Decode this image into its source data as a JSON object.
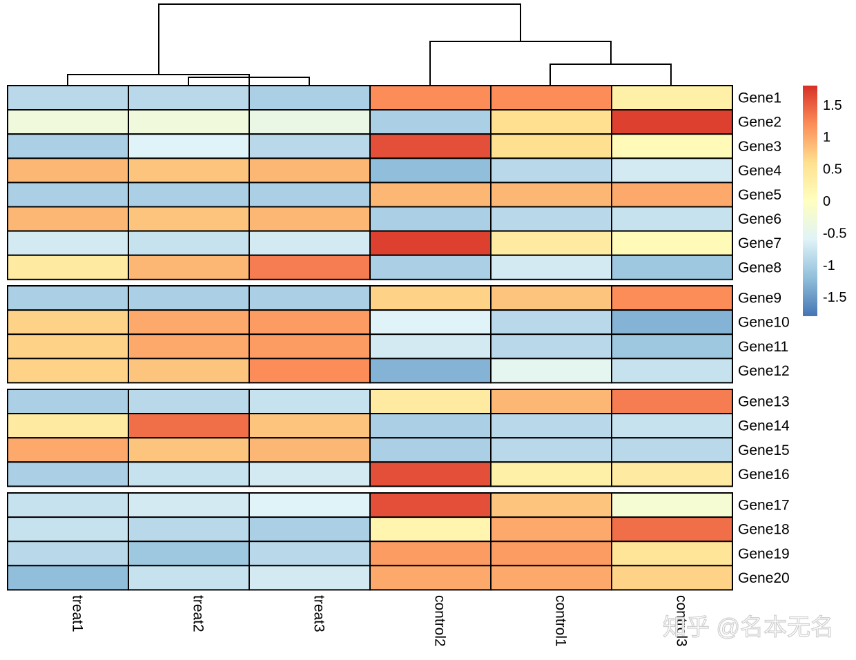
{
  "chart_data": {
    "type": "heatmap",
    "title": "",
    "columns": [
      "treat1",
      "treat2",
      "treat3",
      "control2",
      "control1",
      "control3"
    ],
    "rows": [
      "Gene1",
      "Gene2",
      "Gene3",
      "Gene4",
      "Gene5",
      "Gene6",
      "Gene7",
      "Gene8",
      "Gene9",
      "Gene10",
      "Gene11",
      "Gene12",
      "Gene13",
      "Gene14",
      "Gene15",
      "Gene16",
      "Gene17",
      "Gene18",
      "Gene19",
      "Gene20"
    ],
    "row_groups": [
      [
        "Gene1",
        "Gene2",
        "Gene3",
        "Gene4",
        "Gene5",
        "Gene6",
        "Gene7",
        "Gene8"
      ],
      [
        "Gene9",
        "Gene10",
        "Gene11",
        "Gene12"
      ],
      [
        "Gene13",
        "Gene14",
        "Gene15",
        "Gene16"
      ],
      [
        "Gene17",
        "Gene18",
        "Gene19",
        "Gene20"
      ]
    ],
    "values": [
      [
        -0.9,
        -0.9,
        -1.0,
        1.2,
        1.2,
        0.3
      ],
      [
        -0.3,
        -0.3,
        -0.4,
        -1.0,
        0.6,
        1.7
      ],
      [
        -1.0,
        -0.6,
        -0.9,
        1.6,
        0.6,
        0.1
      ],
      [
        0.9,
        0.8,
        0.9,
        -1.2,
        -0.9,
        -0.7
      ],
      [
        -1.0,
        -1.0,
        -1.0,
        0.9,
        0.9,
        1.0
      ],
      [
        0.9,
        0.8,
        0.9,
        -1.0,
        -0.9,
        -0.8
      ],
      [
        -0.7,
        -0.8,
        -0.7,
        1.7,
        0.4,
        0.1
      ],
      [
        0.4,
        0.9,
        1.3,
        -1.0,
        -0.7,
        -1.1
      ],
      [
        -1.0,
        -1.0,
        -1.0,
        0.7,
        0.8,
        1.2
      ],
      [
        0.7,
        1.0,
        1.1,
        -0.6,
        -0.9,
        -1.3
      ],
      [
        0.7,
        1.0,
        1.1,
        -0.7,
        -0.9,
        -1.1
      ],
      [
        0.7,
        0.8,
        1.2,
        -1.3,
        -0.5,
        -0.8
      ],
      [
        -1.0,
        -0.9,
        -0.8,
        0.4,
        0.9,
        1.3
      ],
      [
        0.4,
        1.4,
        0.8,
        -1.0,
        -0.9,
        -0.8
      ],
      [
        1.0,
        0.8,
        0.9,
        -1.0,
        -0.9,
        -0.9
      ],
      [
        -1.0,
        -0.8,
        -0.7,
        1.6,
        0.3,
        0.4
      ],
      [
        -0.8,
        -0.7,
        -0.6,
        1.6,
        0.8,
        -0.2
      ],
      [
        -0.8,
        -0.9,
        -1.0,
        0.2,
        1.0,
        1.4
      ],
      [
        -0.9,
        -1.1,
        -0.9,
        1.1,
        1.1,
        0.5
      ],
      [
        -1.2,
        -0.8,
        -0.7,
        1.0,
        1.0,
        0.7
      ]
    ],
    "legend": {
      "min": -1.8,
      "max": 1.8,
      "ticks": [
        1.5,
        1,
        0.5,
        0,
        -0.5,
        -1,
        -1.5
      ],
      "tick_labels": [
        "1.5",
        "1",
        "0.5",
        "0",
        "-0.5",
        "-1",
        "-1.5"
      ],
      "colors": [
        "#4575b4",
        "#91bfdb",
        "#e0f3f8",
        "#ffffbf",
        "#fee090",
        "#fc8d59",
        "#d73027"
      ],
      "placement": "right"
    },
    "column_dendrogram": true
  },
  "watermark": "知乎 @名本无名"
}
